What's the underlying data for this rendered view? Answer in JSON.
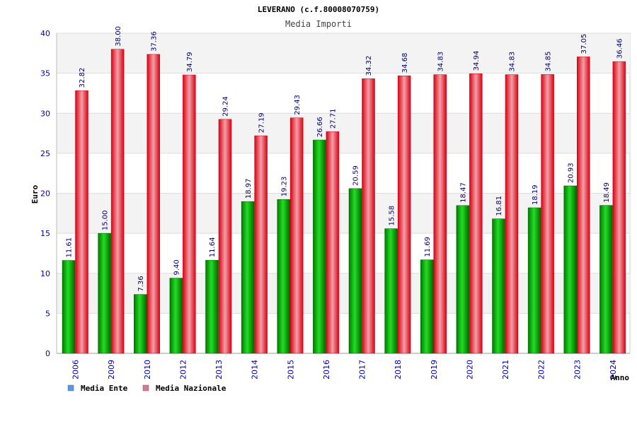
{
  "chart_data": {
    "type": "bar",
    "title": "LEVERANO (c.f.80008070759)",
    "subtitle": "Media Importi",
    "xlabel": "Anno",
    "ylabel": "Euro",
    "ylim": [
      0,
      40
    ],
    "yticks": [
      0,
      5,
      10,
      15,
      20,
      25,
      30,
      35,
      40
    ],
    "grid": true,
    "legend_position": "bottom-left",
    "categories": [
      "2006",
      "2009",
      "2010",
      "2012",
      "2013",
      "2014",
      "2015",
      "2016",
      "2017",
      "2018",
      "2019",
      "2020",
      "2021",
      "2022",
      "2023",
      "2024"
    ],
    "series": [
      {
        "name": "Media Ente",
        "color": "#00bb00",
        "legend_color": "#5599ee",
        "values": [
          11.61,
          15.0,
          7.36,
          9.4,
          11.64,
          18.97,
          19.23,
          26.66,
          20.59,
          15.58,
          11.69,
          18.47,
          16.81,
          18.19,
          20.93,
          18.49
        ],
        "labels": [
          "11.61",
          "15.00",
          "7.36",
          "9.40",
          "11.64",
          "18.97",
          "19.23",
          "26.66",
          "20.59",
          "15.58",
          "11.69",
          "18.47",
          "16.81",
          "18.19",
          "20.93",
          "18.49"
        ]
      },
      {
        "name": "Media Nazionale",
        "color": "#ee1122",
        "legend_color": "#dd7799",
        "values": [
          32.82,
          38.0,
          37.36,
          34.79,
          29.24,
          27.19,
          29.43,
          27.71,
          34.32,
          34.68,
          34.83,
          34.94,
          34.83,
          34.85,
          37.05,
          36.46
        ],
        "labels": [
          "32.82",
          "38.00",
          "37.36",
          "34.79",
          "29.24",
          "27.19",
          "29.43",
          "27.71",
          "34.32",
          "34.68",
          "34.83",
          "34.94",
          "34.83",
          "34.85",
          "37.05",
          "36.46"
        ]
      }
    ]
  }
}
